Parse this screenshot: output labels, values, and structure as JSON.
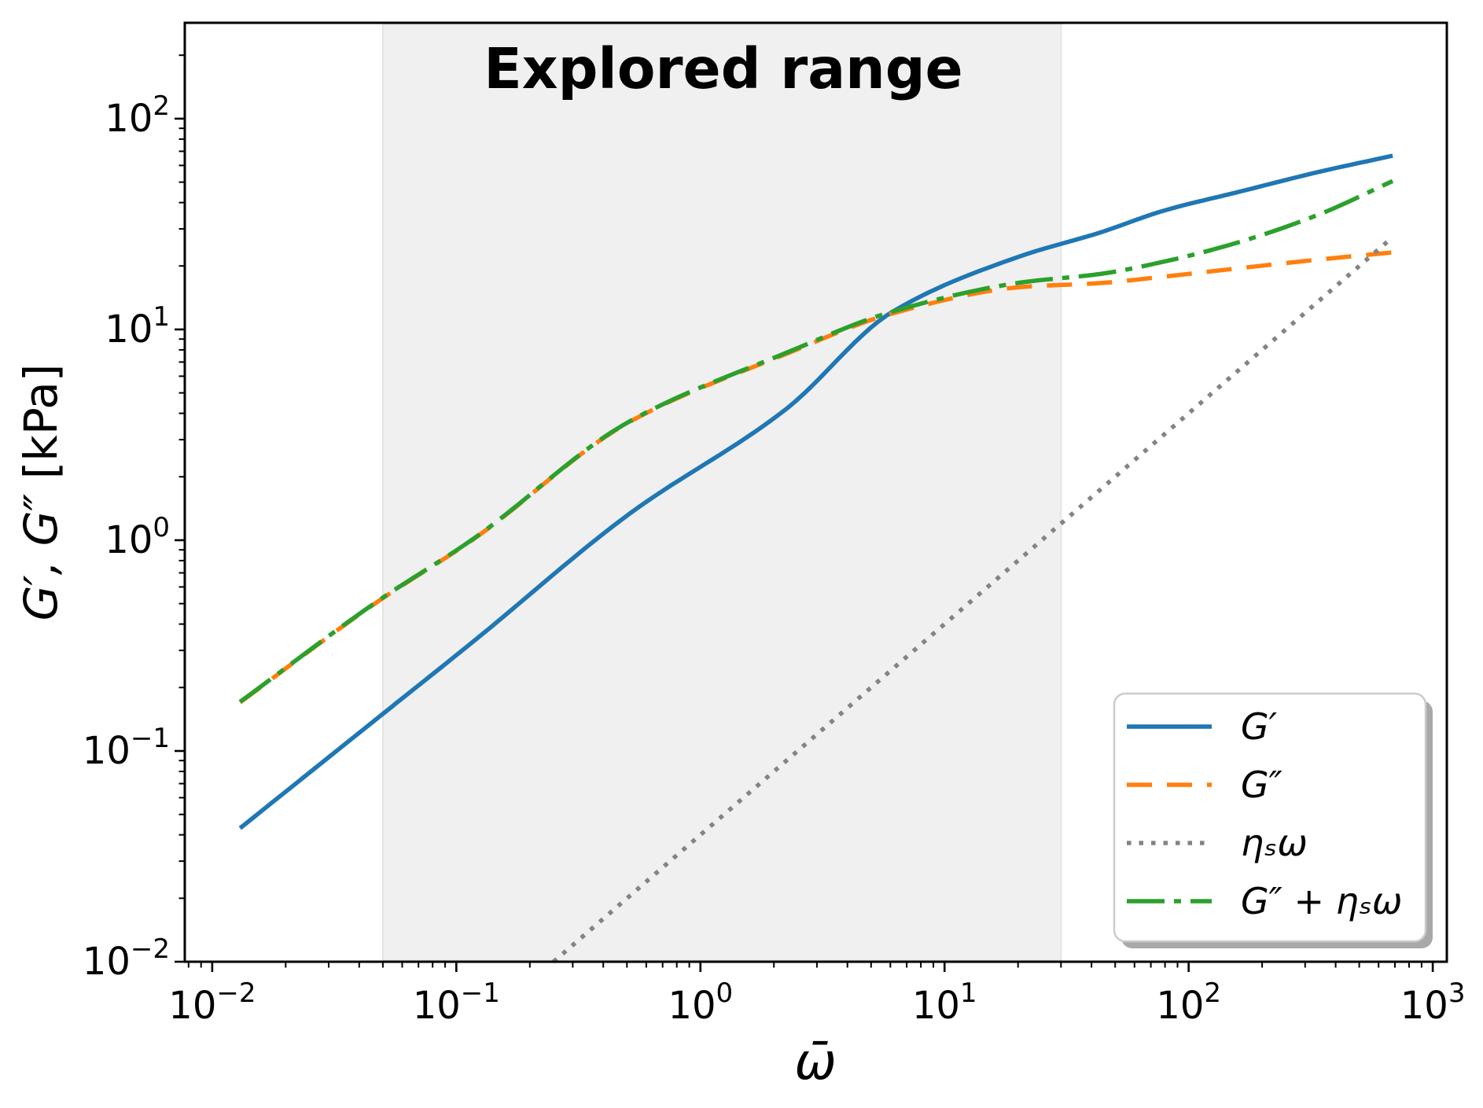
{
  "figure": {
    "title": "Explored range",
    "xlabel": "ω̄",
    "ylabel_math": "G′, G″",
    "ylabel_unit": " [kPa]"
  },
  "chart_data": {
    "type": "line",
    "title": "Explored range",
    "xlabel": "ω̄",
    "ylabel": "G′, G″ [kPa]",
    "x_scale": "log",
    "y_scale": "log",
    "xlim": [
      0.00772,
      1142
    ],
    "ylim": [
      0.01,
      285
    ],
    "grid": false,
    "x_ticks": [
      {
        "value": 0.01,
        "exp": "−2"
      },
      {
        "value": 0.1,
        "exp": "−1"
      },
      {
        "value": 1,
        "exp": "0"
      },
      {
        "value": 10,
        "exp": "1"
      },
      {
        "value": 100,
        "exp": "2"
      },
      {
        "value": 1000,
        "exp": "3"
      }
    ],
    "y_ticks": [
      {
        "value": 0.01,
        "exp": "−2"
      },
      {
        "value": 0.1,
        "exp": "−1"
      },
      {
        "value": 1,
        "exp": "0"
      },
      {
        "value": 10,
        "exp": "1"
      },
      {
        "value": 100,
        "exp": "2"
      }
    ],
    "explored_range": {
      "label": "Explored range",
      "x0": 0.05,
      "x1": 30,
      "fill": "#f0f0f0",
      "edge": "#e4e4e4"
    },
    "eta_s": 0.04,
    "series": [
      {
        "name": "G′",
        "color": "#1f77b4",
        "style": "solid",
        "x": [
          0.013,
          0.0475,
          0.116,
          0.51,
          2.25,
          6.1,
          20.8,
          43.7,
          79,
          160,
          348,
          685
        ],
        "y": [
          0.043,
          0.143,
          0.327,
          1.33,
          4.2,
          12.1,
          22.4,
          28.9,
          36.6,
          44.9,
          56.2,
          66.7
        ]
      },
      {
        "name": "G″",
        "color": "#ff7f0e",
        "style": "dashed",
        "x": [
          0.013,
          0.0475,
          0.116,
          0.51,
          2.25,
          6.1,
          20.8,
          43.7,
          79,
          160,
          348,
          685
        ],
        "y": [
          0.17,
          0.51,
          1.0,
          3.63,
          7.66,
          11.9,
          15.9,
          16.6,
          17.8,
          19.5,
          21.5,
          23.2
        ]
      },
      {
        "name": "ηₛω",
        "color": "#848484",
        "style": "dotted",
        "x": [
          0.25,
          685
        ],
        "y": [
          0.01,
          27.4
        ]
      },
      {
        "name": "G″ + ηₛω",
        "color": "#2ca02c",
        "style": "dashdot",
        "x": [
          0.013,
          0.0475,
          0.116,
          0.51,
          2.25,
          6.1,
          20.8,
          43.7,
          79,
          160,
          348,
          685
        ],
        "y": [
          0.171,
          0.513,
          1.005,
          3.65,
          7.75,
          12.14,
          16.73,
          18.35,
          20.96,
          25.9,
          35.4,
          50.6
        ]
      }
    ],
    "legend": {
      "position": "lower right",
      "labels": [
        "G′",
        "G″",
        "ηₛω",
        "G″ + ηₛω"
      ]
    }
  }
}
